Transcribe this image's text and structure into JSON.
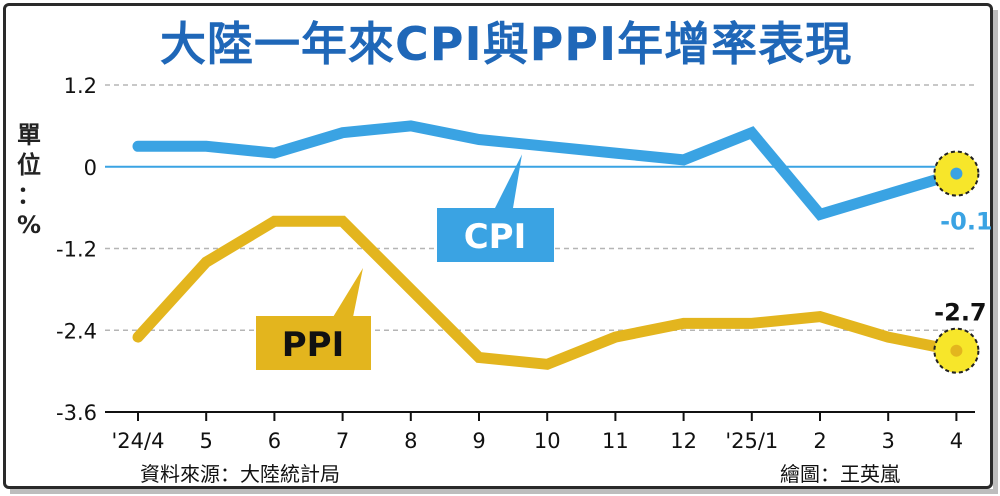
{
  "title": "大陸一年來CPI與PPI年增率表現",
  "y_axis_label": [
    "單",
    "位",
    "：",
    "%"
  ],
  "source": "資料來源：大陸統計局",
  "credit": "繪圖：王英嵐",
  "colors": {
    "cpi": "#3aa3e3",
    "ppi": "#e3b51e",
    "title": "#1f67b8",
    "grid": "#b5b5b5",
    "marker_fill": "#f7e62a"
  },
  "chart_data": {
    "type": "line",
    "title": "大陸一年來CPI與PPI年增率表現",
    "ylabel": "單位：%",
    "xlabel": "",
    "categories": [
      "'24/4",
      "5",
      "6",
      "7",
      "8",
      "9",
      "10",
      "11",
      "12",
      "'25/1",
      "2",
      "3",
      "4"
    ],
    "series": [
      {
        "name": "CPI",
        "values": [
          0.3,
          0.3,
          0.2,
          0.5,
          0.6,
          0.4,
          0.3,
          0.2,
          0.1,
          0.5,
          -0.7,
          -0.4,
          -0.1
        ]
      },
      {
        "name": "PPI",
        "values": [
          -2.5,
          -1.4,
          -0.8,
          -0.8,
          -1.8,
          -2.8,
          -2.9,
          -2.5,
          -2.3,
          -2.3,
          -2.2,
          -2.5,
          -2.7
        ]
      }
    ],
    "ylim": [
      -3.6,
      1.2
    ],
    "yticks": [
      "1.2",
      "0",
      "-1.2",
      "-2.4",
      "-3.6"
    ],
    "yticks_values": [
      1.2,
      0,
      -1.2,
      -2.4,
      -3.6
    ],
    "grid": "horizontal dashed",
    "end_labels": {
      "CPI": "-0.1",
      "PPI": "-2.7"
    }
  }
}
